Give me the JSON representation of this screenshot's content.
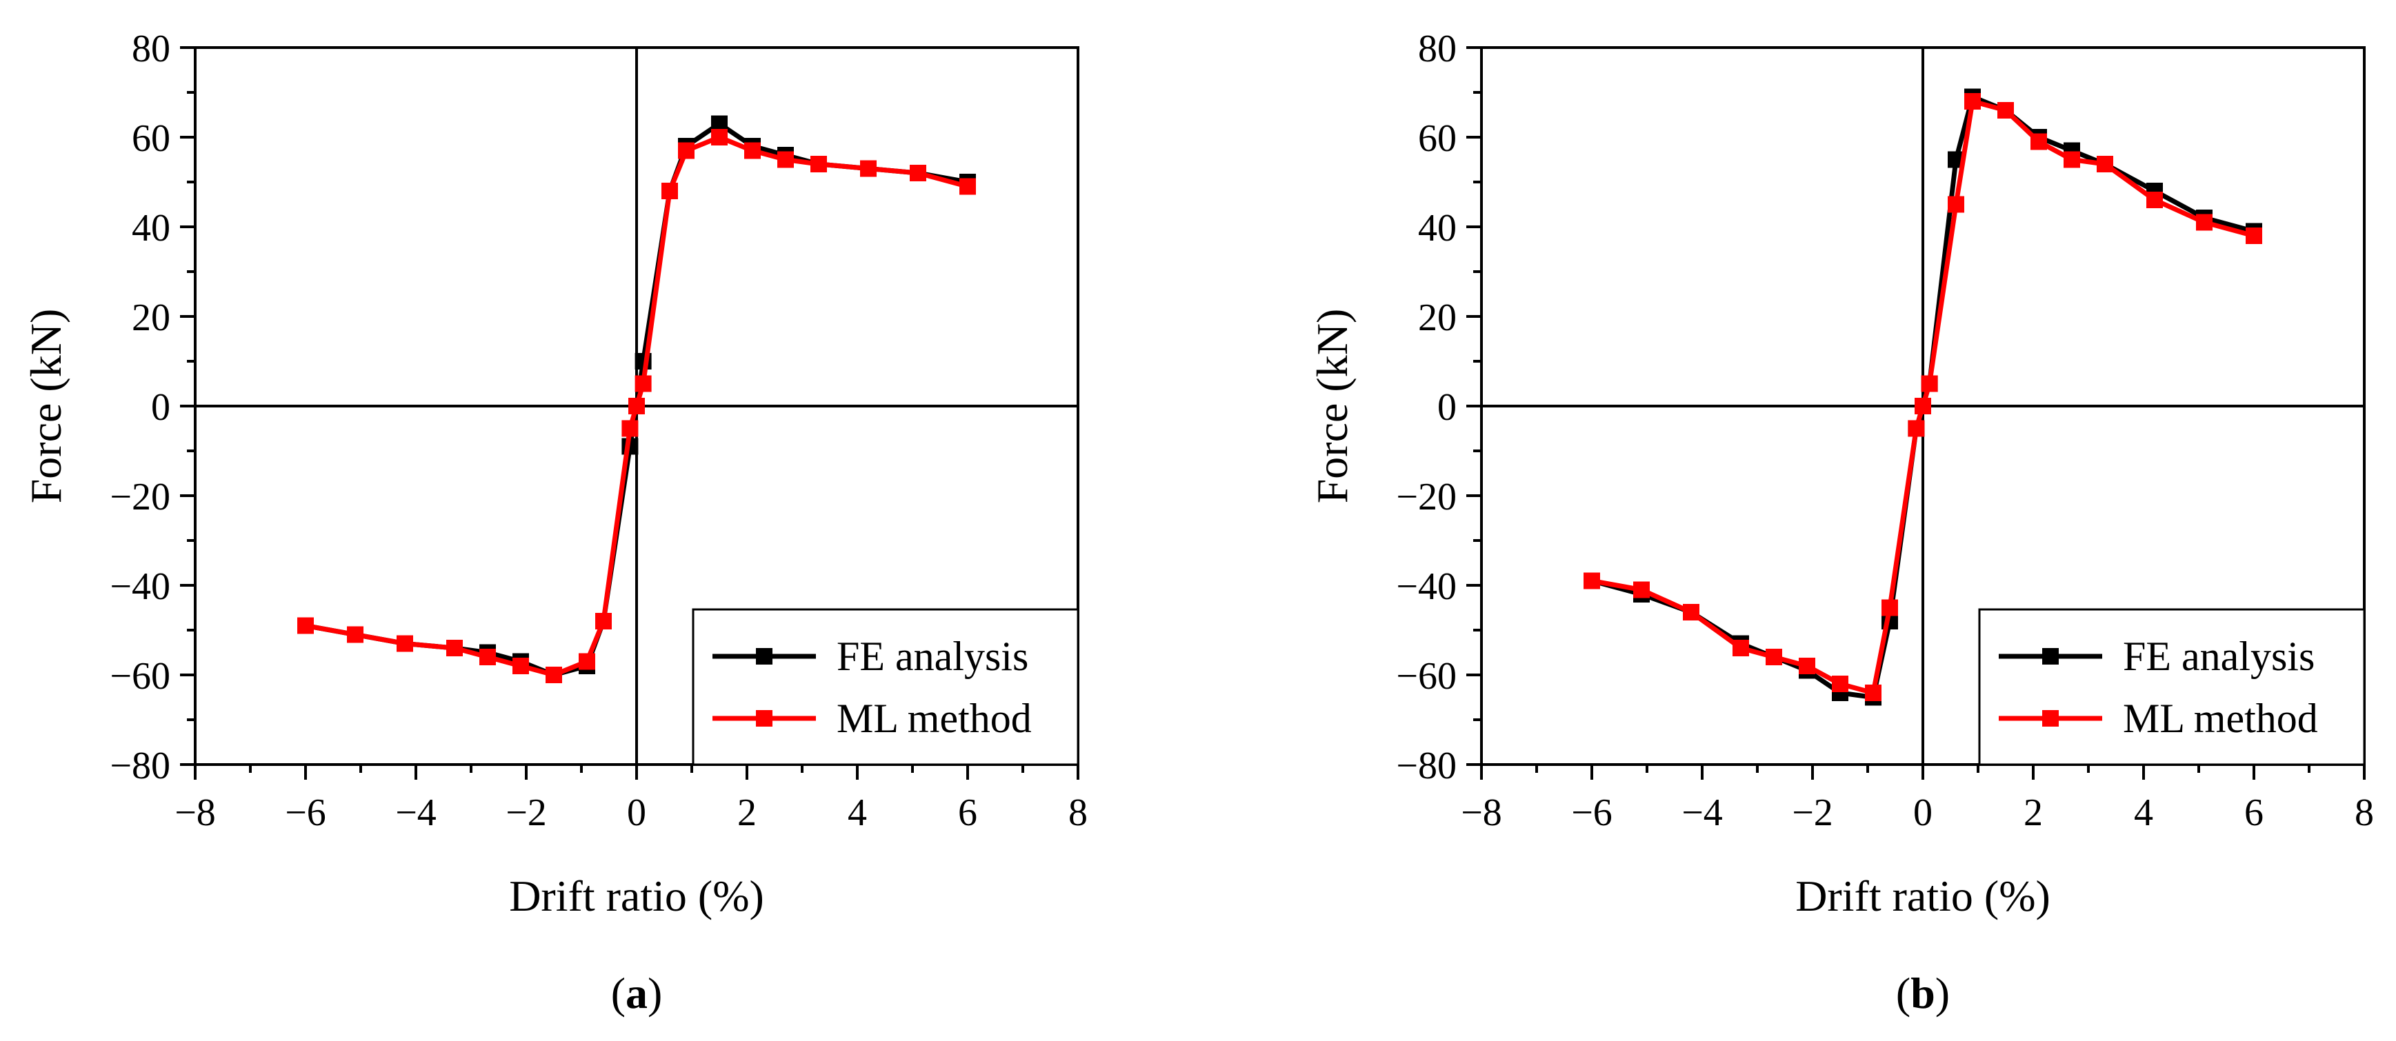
{
  "chart_data": [
    {
      "type": "line",
      "caption_letter": "a",
      "xlabel": "Drift ratio (%)",
      "ylabel": "Force (kN)",
      "xlim": [
        -8,
        8
      ],
      "ylim": [
        -80,
        80
      ],
      "xticks": [
        -8,
        -6,
        -4,
        -2,
        0,
        2,
        4,
        6,
        8
      ],
      "yticks": [
        -80,
        -60,
        -40,
        -20,
        0,
        20,
        40,
        60,
        80
      ],
      "xtick_labels": [
        "−8",
        "−6",
        "−4",
        "−2",
        "0",
        "2",
        "4",
        "6",
        "8"
      ],
      "ytick_labels": [
        "−80",
        "−60",
        "−40",
        "−20",
        "0",
        "20",
        "40",
        "60",
        "80"
      ],
      "legend_position": "bottom-right",
      "series": [
        {
          "name": "FE analysis",
          "color": "#000000",
          "x": [
            -6.0,
            -5.1,
            -4.2,
            -3.3,
            -2.7,
            -2.1,
            -1.5,
            -0.9,
            -0.6,
            -0.12,
            0.0,
            0.12,
            0.6,
            0.9,
            1.5,
            2.1,
            2.7,
            3.3,
            4.2,
            5.1,
            6.0
          ],
          "y": [
            -49,
            -51,
            -53,
            -54,
            -55,
            -57,
            -60,
            -58,
            -48,
            -9,
            0,
            10,
            48,
            58,
            63,
            58,
            56,
            54,
            53,
            52,
            50
          ]
        },
        {
          "name": "ML method",
          "color": "#ff0000",
          "x": [
            -6.0,
            -5.1,
            -4.2,
            -3.3,
            -2.7,
            -2.1,
            -1.5,
            -0.9,
            -0.6,
            -0.12,
            0.0,
            0.12,
            0.6,
            0.9,
            1.5,
            2.1,
            2.7,
            3.3,
            4.2,
            5.1,
            6.0
          ],
          "y": [
            -49,
            -51,
            -53,
            -54,
            -56,
            -58,
            -60,
            -57,
            -48,
            -5,
            0,
            5,
            48,
            57,
            60,
            57,
            55,
            54,
            53,
            52,
            49
          ]
        }
      ]
    },
    {
      "type": "line",
      "caption_letter": "b",
      "xlabel": "Drift ratio (%)",
      "ylabel": "Force (kN)",
      "xlim": [
        -8,
        8
      ],
      "ylim": [
        -80,
        80
      ],
      "xticks": [
        -8,
        -6,
        -4,
        -2,
        0,
        2,
        4,
        6,
        8
      ],
      "yticks": [
        -80,
        -60,
        -40,
        -20,
        0,
        20,
        40,
        60,
        80
      ],
      "xtick_labels": [
        "−8",
        "−6",
        "−4",
        "−2",
        "0",
        "2",
        "4",
        "6",
        "8"
      ],
      "ytick_labels": [
        "−80",
        "−60",
        "−40",
        "−20",
        "0",
        "20",
        "40",
        "60",
        "80"
      ],
      "legend_position": "bottom-right",
      "series": [
        {
          "name": "FE analysis",
          "color": "#000000",
          "x": [
            -6.0,
            -5.1,
            -4.2,
            -3.3,
            -2.7,
            -2.1,
            -1.5,
            -0.9,
            -0.6,
            -0.12,
            0.0,
            0.12,
            0.6,
            0.9,
            1.5,
            2.1,
            2.7,
            3.3,
            4.2,
            5.1,
            6.0
          ],
          "y": [
            -39,
            -42,
            -46,
            -53,
            -56,
            -59,
            -64,
            -65,
            -48,
            -5,
            0,
            5,
            55,
            69,
            66,
            60,
            57,
            54,
            48,
            42,
            39
          ]
        },
        {
          "name": "ML method",
          "color": "#ff0000",
          "x": [
            -6.0,
            -5.1,
            -4.2,
            -3.3,
            -2.7,
            -2.1,
            -1.5,
            -0.9,
            -0.6,
            -0.12,
            0.0,
            0.12,
            0.6,
            0.9,
            1.5,
            2.1,
            2.7,
            3.3,
            4.2,
            5.1,
            6.0
          ],
          "y": [
            -39,
            -41,
            -46,
            -54,
            -56,
            -58,
            -62,
            -64,
            -45,
            -5,
            0,
            5,
            45,
            68,
            66,
            59,
            55,
            54,
            46,
            41,
            38
          ]
        }
      ]
    }
  ]
}
